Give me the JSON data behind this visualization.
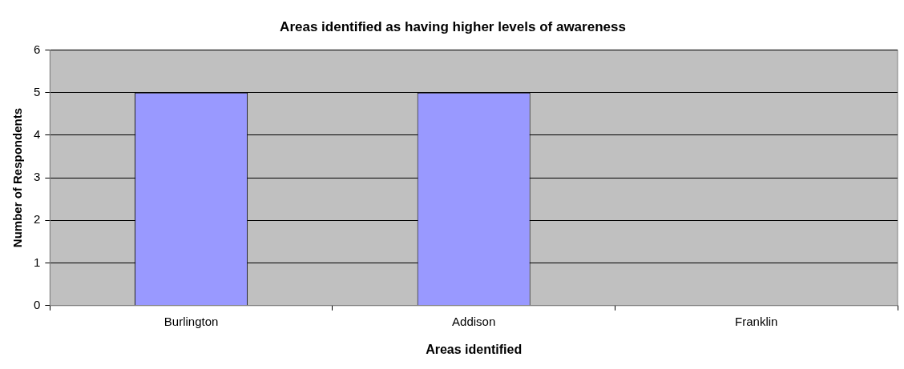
{
  "chart_data": {
    "type": "bar",
    "title": "Areas identified as having higher levels of awareness",
    "xlabel": "Areas identified",
    "ylabel": "Number of Respondents",
    "categories": [
      "Burlington",
      "Addison",
      "Franklin"
    ],
    "values": [
      5,
      5,
      0
    ],
    "color": "#9999ff",
    "ylim": [
      0,
      6
    ],
    "yticks": [
      0,
      1,
      2,
      3,
      4,
      5,
      6
    ],
    "grid": "y",
    "legend": false
  }
}
